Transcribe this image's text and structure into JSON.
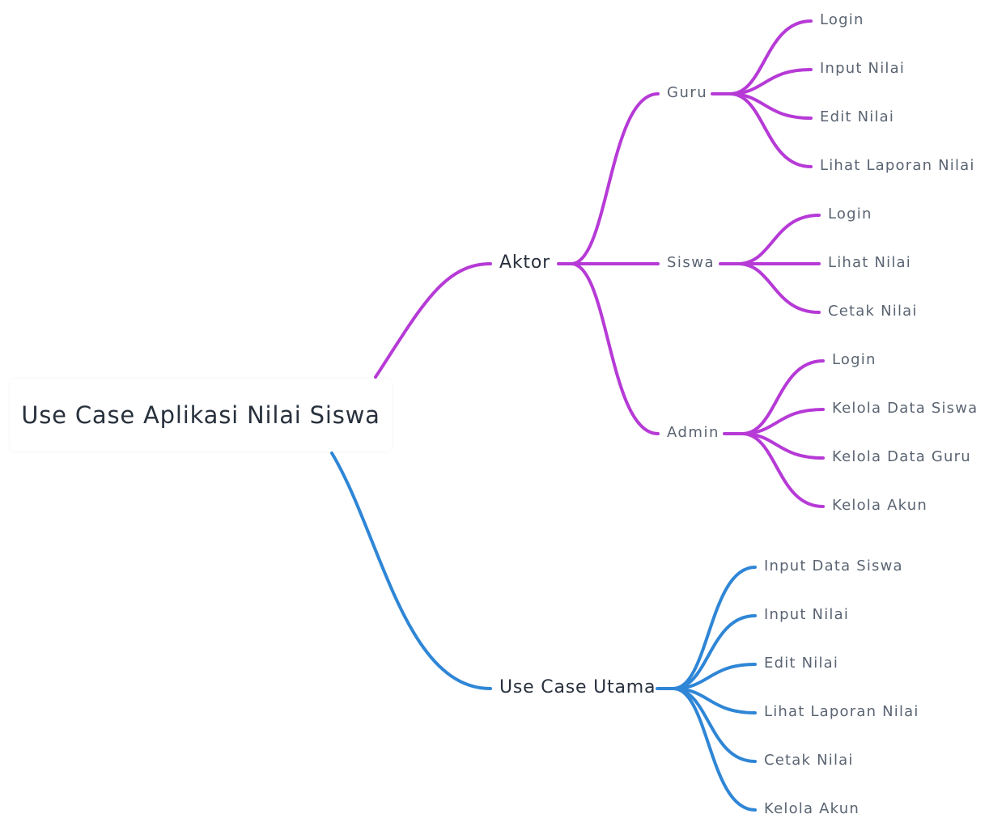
{
  "root": {
    "label": "Use Case Aplikasi Nilai Siswa"
  },
  "colors": {
    "aktor_branch": "#b63ad6",
    "usecase_branch": "#2f86d6"
  },
  "aktor": {
    "label": "Aktor",
    "guru": {
      "label": "Guru",
      "items": [
        "Login",
        "Input Nilai",
        "Edit Nilai",
        "Lihat Laporan Nilai"
      ]
    },
    "siswa": {
      "label": "Siswa",
      "items": [
        "Login",
        "Lihat Nilai",
        "Cetak Nilai"
      ]
    },
    "admin": {
      "label": "Admin",
      "items": [
        "Login",
        "Kelola Data Siswa",
        "Kelola Data Guru",
        "Kelola Akun"
      ]
    }
  },
  "use_case_utama": {
    "label": "Use Case Utama",
    "items": [
      "Input Data Siswa",
      "Input Nilai",
      "Edit Nilai",
      "Lihat Laporan Nilai",
      "Cetak Nilai",
      "Kelola Akun"
    ]
  }
}
